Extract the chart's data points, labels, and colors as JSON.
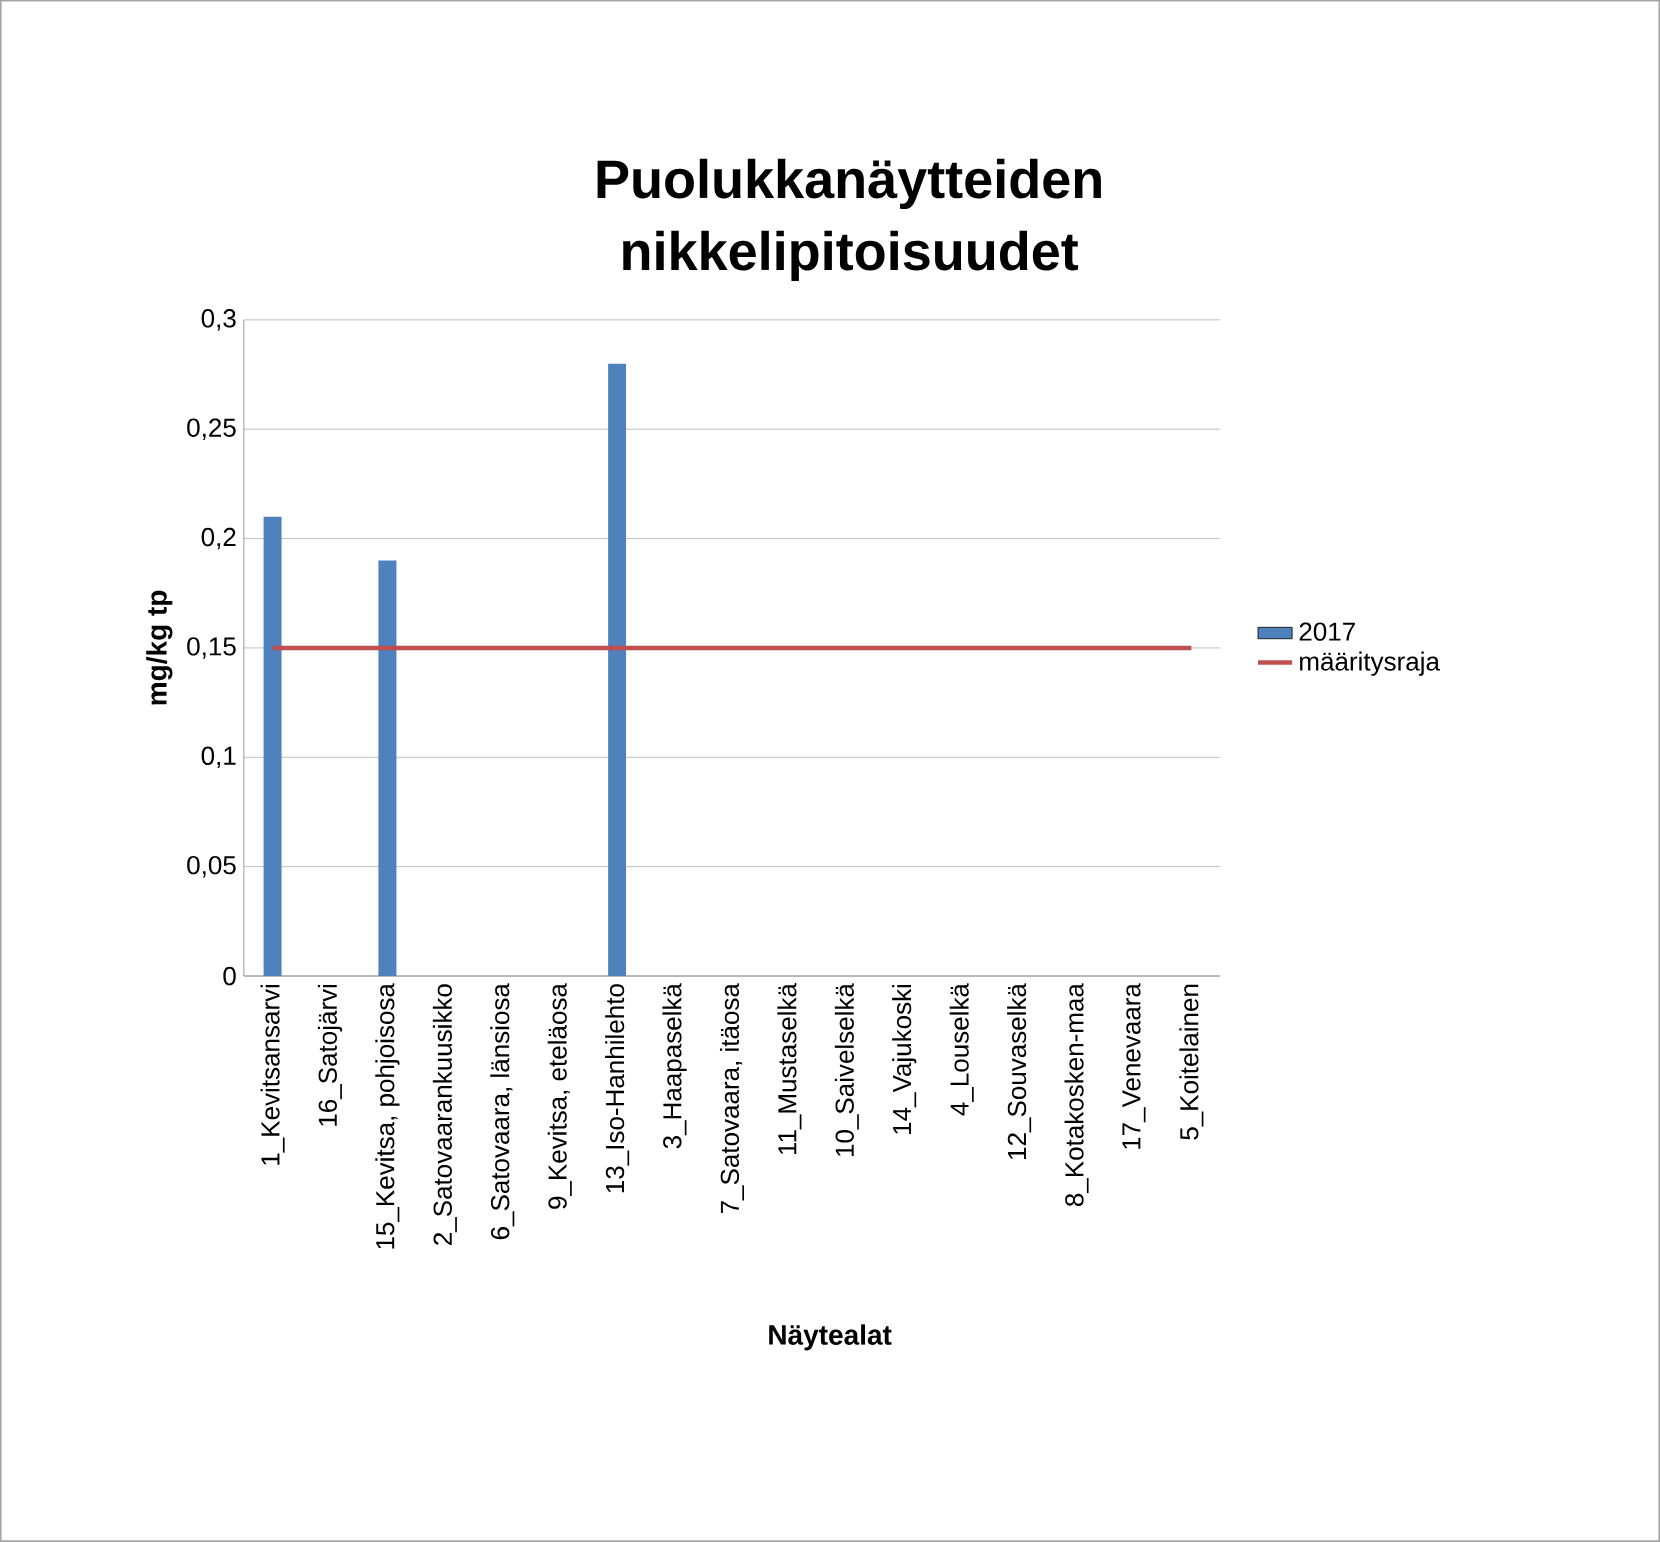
{
  "chart_data": {
    "type": "bar",
    "title": "Puolukkanäytteiden nikkelipitoisuudet",
    "xlabel": "Näytealat",
    "ylabel": "mg/kg tp",
    "categories": [
      "1_Kevitsansarvi",
      "16_Satojärvi",
      "15_Kevitsa, pohjoisosa",
      "2_Satovaarankuusikko",
      "6_Satovaara, länsiosa",
      "9_Kevitsa, eteläosa",
      "13_Iso-Hanhilehto",
      "3_Haapaselkä",
      "7_Satovaara, itäosa",
      "11_Mustaselkä",
      "10_Saivelselkä",
      "14_Vajukoski",
      "4_Louselkä",
      "12_Souvaselkä",
      "8_Kotakosken-maa",
      "17_Venevaara",
      "5_Koitelainen"
    ],
    "series": [
      {
        "name": "2017",
        "color": "#4f81bd",
        "values": [
          0.21,
          null,
          0.19,
          null,
          null,
          null,
          0.28,
          null,
          null,
          null,
          null,
          null,
          null,
          null,
          null,
          null,
          null
        ]
      },
      {
        "name": "määritysraja",
        "type": "line",
        "color": "#c0504d",
        "values": [
          0.15,
          0.15,
          0.15,
          0.15,
          0.15,
          0.15,
          0.15,
          0.15,
          0.15,
          0.15,
          0.15,
          0.15,
          0.15,
          0.15,
          0.15,
          0.15,
          0.15
        ]
      }
    ],
    "ylim": [
      0,
      0.3
    ],
    "yticks": [
      {
        "value": 0,
        "label": "0"
      },
      {
        "value": 0.05,
        "label": "0,05"
      },
      {
        "value": 0.1,
        "label": "0,1"
      },
      {
        "value": 0.15,
        "label": "0,15"
      },
      {
        "value": 0.2,
        "label": "0,2"
      },
      {
        "value": 0.25,
        "label": "0,25"
      },
      {
        "value": 0.3,
        "label": "0,3"
      }
    ],
    "grid": "y",
    "legend": "right",
    "marker": "none"
  }
}
